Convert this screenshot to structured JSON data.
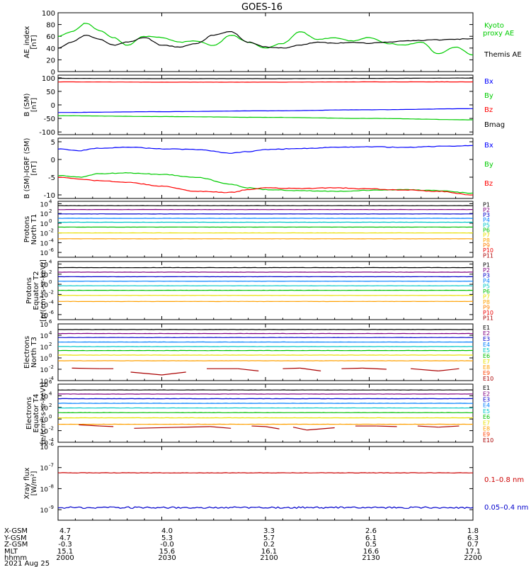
{
  "title": "GOES-16",
  "time_axis": {
    "ticks": [
      "2000",
      "2030",
      "2100",
      "2130",
      "2200"
    ]
  },
  "chart_data": [
    {
      "type": "line",
      "panel": "ae_index",
      "ylabel": [
        "AE_index",
        "[nT]"
      ],
      "ylim": [
        0,
        100
      ],
      "yscale": "linear",
      "yticks": [
        "0",
        "20",
        "40",
        "60",
        "80",
        "100"
      ],
      "legend": [
        "Kyoto",
        "proxy AE",
        "Themis AE"
      ],
      "x_minutes": [
        0,
        4,
        8,
        12,
        16,
        20,
        25,
        30,
        35,
        40,
        45,
        50,
        55,
        60,
        65,
        70,
        75,
        80,
        85,
        90,
        95,
        100,
        105,
        110,
        115,
        120
      ],
      "series": [
        {
          "name": "Kyoto proxy AE",
          "color": "#00cc00",
          "values": [
            60,
            68,
            82,
            70,
            58,
            45,
            60,
            58,
            50,
            52,
            44,
            62,
            50,
            40,
            48,
            68,
            55,
            57,
            52,
            58,
            48,
            45,
            50,
            30,
            42,
            28
          ]
        },
        {
          "name": "Themis AE",
          "color": "#000000",
          "values": [
            40,
            50,
            62,
            55,
            45,
            50,
            58,
            45,
            42,
            48,
            62,
            68,
            50,
            42,
            40,
            45,
            50,
            48,
            50,
            48,
            50,
            52,
            53,
            54,
            55,
            56
          ]
        }
      ]
    },
    {
      "type": "line",
      "panel": "b_sm",
      "ylabel": [
        "B (SM)",
        "[nT]"
      ],
      "ylim": [
        -110,
        110
      ],
      "yscale": "linear",
      "yticks": [
        "-100",
        "-50",
        "0",
        "50",
        "100"
      ],
      "legend": [
        "Bx",
        "By",
        "Bz",
        "Bmag"
      ],
      "x_minutes": [
        0,
        30,
        60,
        90,
        120
      ],
      "series": [
        {
          "name": "Bx",
          "color": "#0000ff",
          "values": [
            -28,
            -25,
            -22,
            -18,
            -14
          ]
        },
        {
          "name": "By",
          "color": "#00cc00",
          "values": [
            -40,
            -43,
            -46,
            -50,
            -55
          ]
        },
        {
          "name": "Bz",
          "color": "#ff0000",
          "values": [
            85,
            84,
            84,
            85,
            85
          ]
        },
        {
          "name": "Bmag",
          "color": "#000000",
          "values": [
            98,
            97,
            97,
            98,
            99
          ]
        }
      ]
    },
    {
      "type": "line",
      "panel": "b_minus_igrf",
      "ylabel": [
        "B (SM)-IGRF (SM)",
        "[nT]"
      ],
      "ylim": [
        -11,
        6
      ],
      "yscale": "linear",
      "yticks": [
        "-10",
        "-5",
        "0",
        "5"
      ],
      "legend": [
        "Bx",
        "By",
        "Bz"
      ],
      "x_minutes": [
        0,
        6,
        12,
        20,
        30,
        40,
        50,
        55,
        60,
        70,
        80,
        90,
        100,
        110,
        120
      ],
      "series": [
        {
          "name": "Bx",
          "color": "#0000ff",
          "values": [
            3,
            2.5,
            3.2,
            3.5,
            3,
            2.8,
            1.8,
            2.2,
            2.8,
            3.1,
            3.4,
            3.6,
            3.4,
            3.7,
            3.9
          ]
        },
        {
          "name": "By",
          "color": "#00cc00",
          "values": [
            -4.5,
            -5,
            -4,
            -3.8,
            -4.2,
            -5,
            -7,
            -8,
            -8.5,
            -8.8,
            -9,
            -8.7,
            -8.5,
            -8.8,
            -9.5
          ]
        },
        {
          "name": "Bz",
          "color": "#ff0000",
          "values": [
            -5,
            -5.5,
            -6,
            -6.5,
            -7.5,
            -9,
            -9.3,
            -8.5,
            -8,
            -8.2,
            -8,
            -8.3,
            -8.6,
            -9,
            -10
          ]
        }
      ]
    },
    {
      "type": "line",
      "panel": "protons_t1",
      "ylabel": [
        "Protons",
        "North T1"
      ],
      "ylim_log10": [
        -7,
        4.5
      ],
      "yscale": "log",
      "yticks": [
        "10^4",
        "10^2",
        "10^0",
        "10^-2",
        "10^-4",
        "10^-6"
      ],
      "legend": [
        "P1",
        "P2",
        "P3",
        "P4",
        "P5",
        "P6",
        "P7",
        "P8",
        "P9",
        "P10",
        "P11"
      ],
      "series": [
        {
          "name": "P1",
          "color": "#000000",
          "log10_level": 3.6
        },
        {
          "name": "P2",
          "color": "#800080",
          "log10_level": 2.8
        },
        {
          "name": "P3",
          "color": "#0000cc",
          "log10_level": 1.9
        },
        {
          "name": "P4",
          "color": "#0080ff",
          "log10_level": 1.0
        },
        {
          "name": "P5",
          "color": "#00c8c8",
          "log10_level": 0.2
        },
        {
          "name": "P6",
          "color": "#00c000",
          "log10_level": -0.8
        },
        {
          "name": "P7",
          "color": "#e8e000",
          "log10_level": -2.0
        },
        {
          "name": "P8",
          "color": "#ffa000",
          "log10_level": -3.2
        }
      ]
    },
    {
      "type": "line",
      "panel": "protons_t2",
      "ylabel": [
        "Protons",
        "Equator T2",
        "[p/(cm²-s-sr-keV)]"
      ],
      "ylim_log10": [
        -7,
        4.5
      ],
      "yscale": "log",
      "yticks": [
        "10^4",
        "10^2",
        "10^0",
        "10^-2",
        "10^-4",
        "10^-6"
      ],
      "legend": [
        "P1",
        "P2",
        "P3",
        "P4",
        "P5",
        "P6",
        "P7",
        "P8",
        "P9",
        "P10",
        "P11"
      ],
      "series": [
        {
          "name": "P1",
          "color": "#000000",
          "log10_level": 3.3
        },
        {
          "name": "P2",
          "color": "#800080",
          "log10_level": 2.4
        },
        {
          "name": "P3",
          "color": "#0000cc",
          "log10_level": 1.5
        },
        {
          "name": "P4",
          "color": "#0080ff",
          "log10_level": 0.6
        },
        {
          "name": "P5",
          "color": "#00c8c8",
          "log10_level": -0.3
        },
        {
          "name": "P6",
          "color": "#00c000",
          "log10_level": -1.2
        },
        {
          "name": "P7",
          "color": "#e8e000",
          "log10_level": -2.2
        },
        {
          "name": "P8",
          "color": "#ffa000",
          "log10_level": -3.4
        }
      ]
    },
    {
      "type": "line",
      "panel": "electrons_t3",
      "ylabel": [
        "Electrons",
        "North T3"
      ],
      "ylim_log10": [
        -4,
        6
      ],
      "yscale": "log",
      "yticks": [
        "10^6",
        "10^4",
        "10^2",
        "10^0",
        "10^-2",
        "10^-4"
      ],
      "legend": [
        "E1",
        "E2",
        "E3",
        "E4",
        "E5",
        "E6",
        "E7",
        "E8",
        "E9",
        "E10"
      ],
      "series": [
        {
          "name": "E1",
          "color": "#000000",
          "log10_level": 5.0
        },
        {
          "name": "E2",
          "color": "#800080",
          "log10_level": 4.3
        },
        {
          "name": "E3",
          "color": "#0000cc",
          "log10_level": 3.6
        },
        {
          "name": "E4",
          "color": "#0080ff",
          "log10_level": 2.8
        },
        {
          "name": "E5",
          "color": "#00c8c8",
          "log10_level": 2.0
        },
        {
          "name": "E6",
          "color": "#00c000",
          "log10_level": 1.3
        },
        {
          "name": "E7",
          "color": "#e8e000",
          "log10_level": 0.5
        },
        {
          "name": "E8",
          "color": "#ffa000",
          "log10_level": -0.5
        },
        {
          "name": "E9",
          "color": "#aa0000",
          "x_minutes": [
            4,
            12,
            16,
            21,
            30,
            37,
            43,
            52,
            58,
            65,
            70,
            76,
            82,
            88,
            95,
            102,
            110,
            116
          ],
          "values": [
            -1.8,
            -1.9,
            -1.9,
            -2.5,
            -3.0,
            -2.5,
            -1.9,
            -1.9,
            -2.3,
            -1.9,
            -1.8,
            -2.3,
            -1.9,
            -1.8,
            -2.0,
            -1.9,
            -2.3,
            -1.9
          ]
        }
      ]
    },
    {
      "type": "line",
      "panel": "electrons_t4",
      "ylabel": [
        "Electrons",
        "Equator T4",
        "[e/(cm²-s-sr-keV)]"
      ],
      "ylim_log10": [
        -4,
        6
      ],
      "yscale": "log",
      "yticks": [
        "10^6",
        "10^4",
        "10^2",
        "10^0",
        "10^-2",
        "10^-4"
      ],
      "legend": [
        "E1",
        "E2",
        "E3",
        "E4",
        "E5",
        "E6",
        "E7",
        "E8",
        "E9",
        "E10"
      ],
      "series": [
        {
          "name": "E1",
          "color": "#000000",
          "log10_level": 5.0
        },
        {
          "name": "E2",
          "color": "#800080",
          "log10_level": 4.3
        },
        {
          "name": "E3",
          "color": "#0000cc",
          "log10_level": 3.5
        },
        {
          "name": "E4",
          "color": "#0080ff",
          "log10_level": 2.7
        },
        {
          "name": "E5",
          "color": "#00c8c8",
          "log10_level": 1.9
        },
        {
          "name": "E6",
          "color": "#00c000",
          "log10_level": 1.1
        },
        {
          "name": "E7",
          "color": "#e8e000",
          "log10_level": 0.2
        },
        {
          "name": "E8",
          "color": "#ffa000",
          "log10_level": -0.9
        },
        {
          "name": "E9",
          "color": "#aa0000",
          "x_minutes": [
            6,
            12,
            16,
            22,
            44,
            50,
            56,
            60,
            64,
            68,
            72,
            80,
            86,
            92,
            98,
            104,
            110,
            116
          ],
          "values": [
            -1.0,
            -1.2,
            -1.3,
            -1.6,
            -1.3,
            -1.6,
            -1.2,
            -1.3,
            -1.7,
            -1.4,
            -1.9,
            -1.5,
            -1.2,
            -1.2,
            -1.3,
            -1.2,
            -1.4,
            -1.2
          ]
        }
      ]
    },
    {
      "type": "line",
      "panel": "xray_flux",
      "ylabel": [
        "Xray flux",
        "[W/m²]"
      ],
      "ylim_log10": [
        -9.5,
        -6
      ],
      "yscale": "log",
      "yticks": [
        "10^-6",
        "10^-7",
        "10^-8",
        "10^-9"
      ],
      "legend": [
        "0.1–0.8 nm",
        "0.05–0.4 nm"
      ],
      "series": [
        {
          "name": "0.1–0.8 nm",
          "color": "#cc0000",
          "log10_level": -7.25
        },
        {
          "name": "0.05–0.4 nm",
          "color": "#0000cc",
          "log10_level": -8.9
        }
      ]
    }
  ],
  "ephemeris": {
    "rows": [
      {
        "label": "X-GSM",
        "values": [
          "4.7",
          "4.0",
          "3.3",
          "2.6",
          "1.8"
        ]
      },
      {
        "label": "Y-GSM",
        "values": [
          "4.7",
          "5.3",
          "5.7",
          "6.1",
          "6.3"
        ]
      },
      {
        "label": "Z-GSM",
        "values": [
          "-0.3",
          "-0.0",
          "0.2",
          "0.5",
          "0.7"
        ]
      },
      {
        "label": "MLT",
        "values": [
          "15.1",
          "15.6",
          "16.1",
          "16.6",
          "17.1"
        ]
      },
      {
        "label": "hhmm",
        "values": [
          "2000",
          "2030",
          "2100",
          "2130",
          "2200"
        ]
      }
    ],
    "date": "2021 Aug 25"
  }
}
